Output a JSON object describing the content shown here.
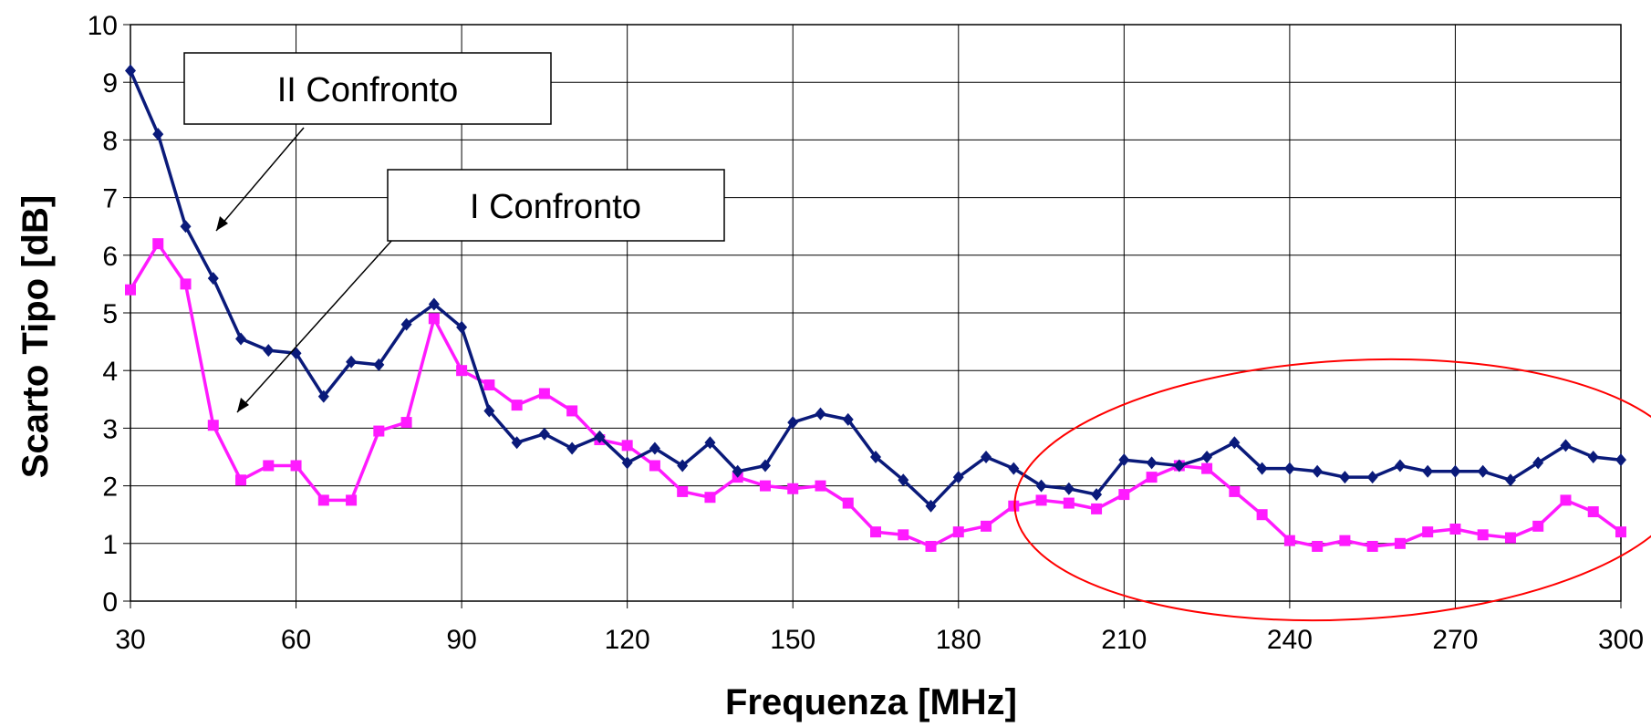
{
  "chart_data": {
    "type": "line",
    "xlabel": "Frequenza [MHz]",
    "ylabel": "Scarto Tipo [dB]",
    "xlim": [
      30,
      300
    ],
    "ylim": [
      0,
      10
    ],
    "xticks": [
      30,
      60,
      90,
      120,
      150,
      180,
      210,
      240,
      270,
      300
    ],
    "yticks": [
      0,
      1,
      2,
      3,
      4,
      5,
      6,
      7,
      8,
      9,
      10
    ],
    "grid": true,
    "x": [
      30,
      35,
      40,
      45,
      50,
      55,
      60,
      65,
      70,
      75,
      80,
      85,
      90,
      95,
      100,
      105,
      110,
      115,
      120,
      125,
      130,
      135,
      140,
      145,
      150,
      155,
      160,
      165,
      170,
      175,
      180,
      185,
      190,
      195,
      200,
      205,
      210,
      215,
      220,
      225,
      230,
      235,
      240,
      245,
      250,
      255,
      260,
      265,
      270,
      275,
      280,
      285,
      290,
      295,
      300
    ],
    "series": [
      {
        "name": "II Confronto",
        "color": "#0a1a7a",
        "marker": "diamond",
        "values": [
          9.2,
          8.1,
          6.5,
          5.6,
          4.55,
          4.35,
          4.3,
          3.55,
          4.15,
          4.1,
          4.8,
          5.15,
          4.75,
          3.3,
          2.75,
          2.9,
          2.65,
          2.85,
          2.4,
          2.65,
          2.35,
          2.75,
          2.25,
          2.35,
          3.1,
          3.25,
          3.15,
          2.5,
          2.1,
          1.65,
          2.15,
          2.5,
          2.3,
          2.0,
          1.95,
          1.85,
          2.45,
          2.4,
          2.35,
          2.5,
          2.75,
          2.3,
          2.3,
          2.25,
          2.15,
          2.15,
          2.35,
          2.25,
          2.25,
          2.25,
          2.1,
          2.4,
          2.7,
          2.5,
          2.45
        ]
      },
      {
        "name": "I Confronto",
        "color": "#ff1aff",
        "marker": "square",
        "values": [
          5.4,
          6.2,
          5.5,
          3.05,
          2.1,
          2.35,
          2.35,
          1.75,
          1.75,
          2.95,
          3.1,
          4.9,
          4.0,
          3.75,
          3.4,
          3.6,
          3.3,
          2.8,
          2.7,
          2.35,
          1.9,
          1.8,
          2.15,
          2.0,
          1.95,
          2.0,
          1.7,
          1.2,
          1.15,
          0.95,
          1.2,
          1.3,
          1.65,
          1.75,
          1.7,
          1.6,
          1.85,
          2.15,
          2.35,
          2.3,
          1.9,
          1.5,
          1.05,
          0.95,
          1.05,
          0.95,
          1.0,
          1.2,
          1.25,
          1.15,
          1.1,
          1.3,
          1.75,
          1.55,
          1.2
        ]
      }
    ],
    "annotations": [
      {
        "text": "II Confronto",
        "target_series": "II Confronto"
      },
      {
        "text": "I Confronto",
        "target_series": "I Confronto"
      }
    ],
    "highlight": {
      "shape": "ellipse",
      "color": "#ff0000"
    }
  }
}
